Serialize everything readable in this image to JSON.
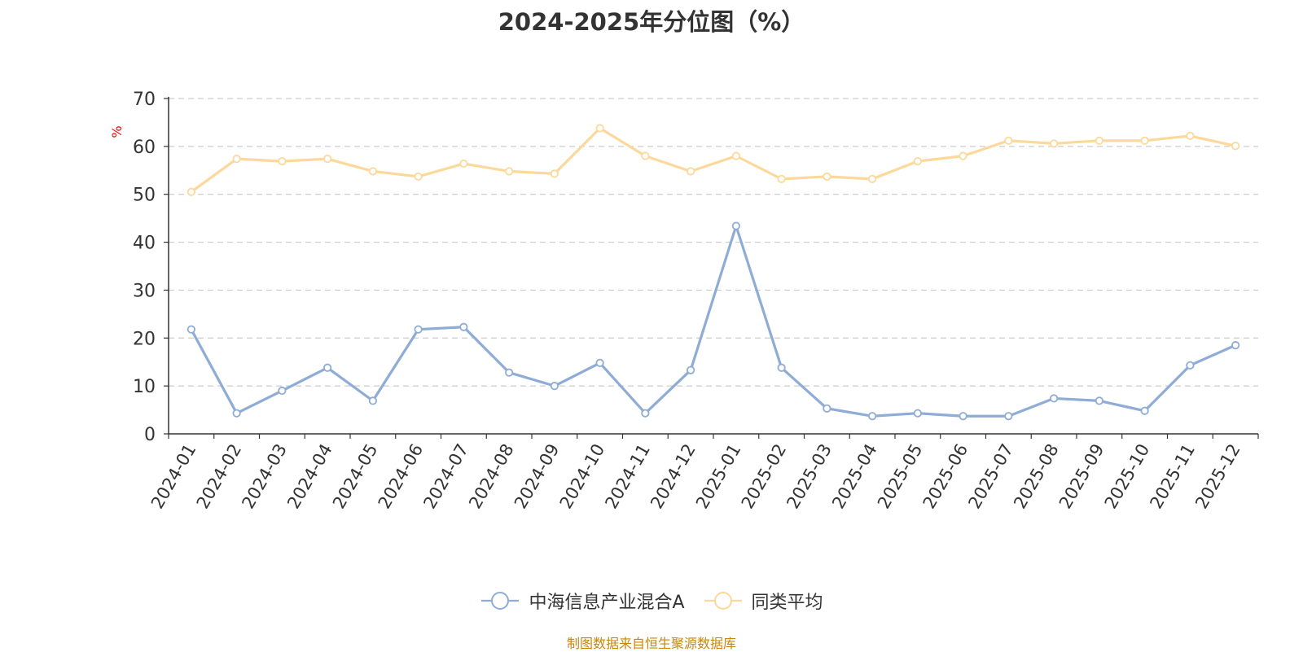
{
  "title": "2024-2025年分位图（%）",
  "source_note": "制图数据来自恒生聚源数据库",
  "chart_data": {
    "type": "line",
    "title": "2024-2025年分位图（%）",
    "xlabel": "",
    "ylabel": "%",
    "ylim": [
      0,
      70
    ],
    "yticks": [
      0,
      10,
      20,
      30,
      40,
      50,
      60,
      70
    ],
    "grid": true,
    "legend_position": "bottom",
    "categories": [
      "2024-01",
      "2024-02",
      "2024-03",
      "2024-04",
      "2024-05",
      "2024-06",
      "2024-07",
      "2024-08",
      "2024-09",
      "2024-10",
      "2024-11",
      "2024-12",
      "2025-01",
      "2025-02",
      "2025-03",
      "2025-04",
      "2025-05",
      "2025-06",
      "2025-07",
      "2025-08",
      "2025-09",
      "2025-10",
      "2025-11",
      "2025-12"
    ],
    "series": [
      {
        "name": "中海信息产业混合A",
        "color": "#8eacd6",
        "values": [
          21.8,
          4.3,
          9.0,
          13.8,
          6.9,
          21.8,
          22.3,
          12.8,
          10.0,
          14.8,
          4.3,
          13.3,
          43.4,
          13.8,
          5.3,
          3.7,
          4.3,
          3.7,
          3.7,
          7.4,
          6.9,
          4.8,
          14.3,
          18.5
        ]
      },
      {
        "name": "同类平均",
        "color": "#fcd89a",
        "values": [
          50.5,
          57.4,
          56.9,
          57.4,
          54.8,
          53.7,
          56.4,
          54.8,
          54.3,
          63.8,
          58.0,
          54.8,
          58.0,
          53.2,
          53.7,
          53.2,
          56.9,
          58.0,
          61.2,
          60.6,
          61.2,
          61.2,
          62.2,
          60.1
        ]
      }
    ]
  }
}
